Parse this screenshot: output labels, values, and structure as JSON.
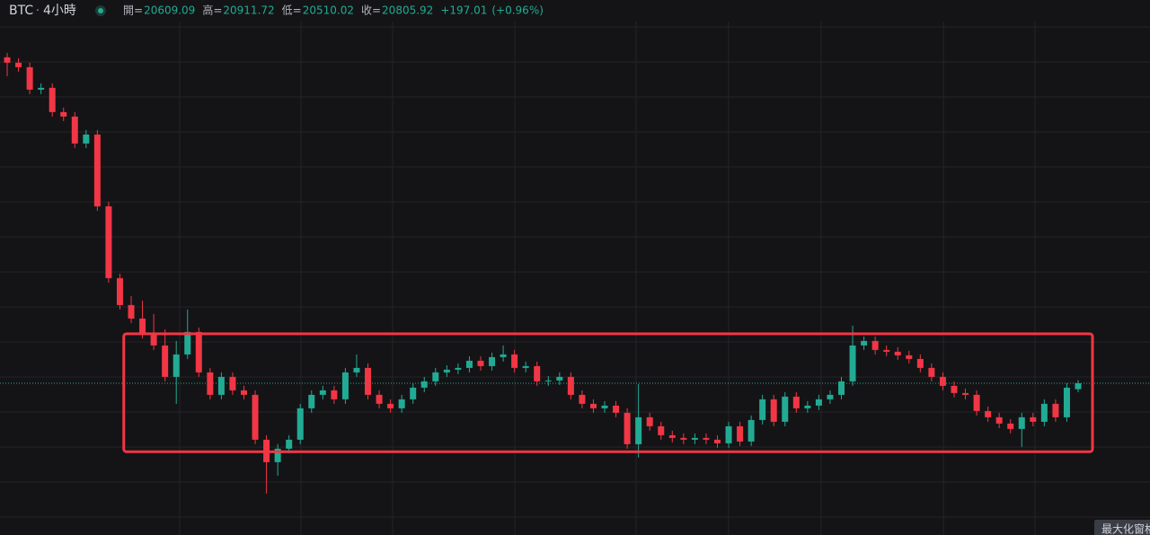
{
  "chart_data": {
    "type": "candlestick",
    "symbol": "BTC",
    "interval": "4小時",
    "header": [
      {
        "label": "開=",
        "value": 20609.09
      },
      {
        "label": "高=",
        "value": 20911.72
      },
      {
        "label": "低=",
        "value": 20510.02
      },
      {
        "label": "收=",
        "value": 20805.92
      }
    ],
    "change": {
      "value": 197.01,
      "label": "+197.01"
    },
    "change_pct": {
      "value": 0.96,
      "label": "(+0.96%)"
    },
    "up_color": "#22ab94",
    "down_color": "#f23645",
    "ylim": [
      15736,
      33616
    ],
    "open": [
      31700,
      31520,
      31370,
      30620,
      30680,
      29870,
      29720,
      28820,
      29120,
      26720,
      24320,
      23420,
      22970,
      22460,
      22070,
      21020,
      21770,
      22520,
      21170,
      20420,
      21020,
      20570,
      20420,
      18920,
      18170,
      18620,
      18920,
      19970,
      20420,
      20570,
      20270,
      21170,
      21320,
      20420,
      20120,
      19970,
      20270,
      20660,
      20870,
      21170,
      21260,
      21320,
      21560,
      21380,
      21680,
      21770,
      21320,
      21380,
      20870,
      20900,
      21020,
      20420,
      20120,
      19970,
      20060,
      19820,
      18770,
      19670,
      19370,
      19070,
      18980,
      18920,
      18980,
      18920,
      18800,
      19370,
      18860,
      19580,
      20270,
      19520,
      20360,
      19970,
      20060,
      20270,
      20420,
      20870,
      22070,
      22220,
      21920,
      21860,
      21740,
      21620,
      21320,
      21020,
      20720,
      20480,
      20420,
      19880,
      19670,
      19460,
      19280,
      19670,
      19520,
      20120,
      19670,
      20609.09
    ],
    "high": [
      31850,
      31670,
      31520,
      30830,
      30830,
      30020,
      29870,
      29270,
      29270,
      26870,
      24470,
      23720,
      23570,
      23120,
      22610,
      22220,
      23270,
      22670,
      21320,
      21170,
      21170,
      20720,
      20570,
      19070,
      18770,
      19070,
      20120,
      20570,
      20720,
      20720,
      21320,
      21770,
      21470,
      20570,
      20270,
      20420,
      20810,
      21020,
      21320,
      21410,
      21470,
      21710,
      21710,
      21830,
      22070,
      21920,
      21530,
      21530,
      21050,
      21170,
      21170,
      20570,
      20270,
      20210,
      20210,
      19970,
      20780,
      19820,
      19520,
      19220,
      19130,
      19130,
      19130,
      19070,
      19520,
      19520,
      19730,
      20420,
      20420,
      20510,
      20510,
      20210,
      20420,
      20570,
      21020,
      22730,
      22370,
      22370,
      22070,
      22010,
      21890,
      21770,
      21470,
      21170,
      20870,
      20630,
      20570,
      20030,
      19820,
      19610,
      19820,
      19820,
      20270,
      20270,
      20810,
      20911.72
    ],
    "low": [
      31070,
      31220,
      30470,
      30470,
      29720,
      29570,
      28670,
      28670,
      26570,
      24170,
      23270,
      22820,
      22310,
      21920,
      20870,
      20120,
      21620,
      21020,
      20270,
      20270,
      20420,
      20270,
      18770,
      17120,
      17720,
      18470,
      18770,
      19820,
      20270,
      20120,
      20120,
      21020,
      20270,
      19970,
      19820,
      19820,
      20120,
      20510,
      20720,
      21020,
      21110,
      21170,
      21230,
      21230,
      21530,
      21170,
      21170,
      20720,
      20720,
      20750,
      20270,
      19970,
      19820,
      19820,
      19670,
      18620,
      18320,
      19220,
      18920,
      18830,
      18770,
      18770,
      18770,
      18650,
      18650,
      18710,
      18710,
      19430,
      19370,
      19370,
      19820,
      19820,
      19910,
      20120,
      20270,
      20720,
      21920,
      21770,
      21710,
      21590,
      21470,
      21170,
      20870,
      20570,
      20330,
      20270,
      19730,
      19520,
      19310,
      19130,
      18680,
      19370,
      19370,
      19520,
      19520,
      20510.02
    ],
    "close": [
      31520,
      31370,
      30620,
      30680,
      29870,
      29720,
      28820,
      29120,
      26720,
      24320,
      23420,
      22970,
      22460,
      22070,
      21020,
      21770,
      22520,
      21170,
      20420,
      21020,
      20570,
      20420,
      18920,
      18170,
      18620,
      18920,
      19970,
      20420,
      20570,
      20270,
      21170,
      21320,
      20420,
      20120,
      19970,
      20270,
      20660,
      20870,
      21170,
      21260,
      21320,
      21560,
      21380,
      21680,
      21770,
      21320,
      21380,
      20870,
      20900,
      21020,
      20420,
      20120,
      19970,
      20060,
      19820,
      18770,
      19670,
      19370,
      19070,
      18980,
      18920,
      18980,
      18920,
      18800,
      19370,
      18860,
      19580,
      20270,
      19520,
      20360,
      19970,
      20060,
      20270,
      20420,
      20870,
      22070,
      22220,
      21920,
      21860,
      21740,
      21620,
      21320,
      21020,
      20720,
      20480,
      20420,
      19880,
      19670,
      19460,
      19280,
      19670,
      19520,
      20120,
      19670,
      20660,
      20805.92
    ],
    "range_box": {
      "top": 22460,
      "bottom": 18520,
      "color": "#f23645"
    },
    "button": "最大化窗格"
  }
}
